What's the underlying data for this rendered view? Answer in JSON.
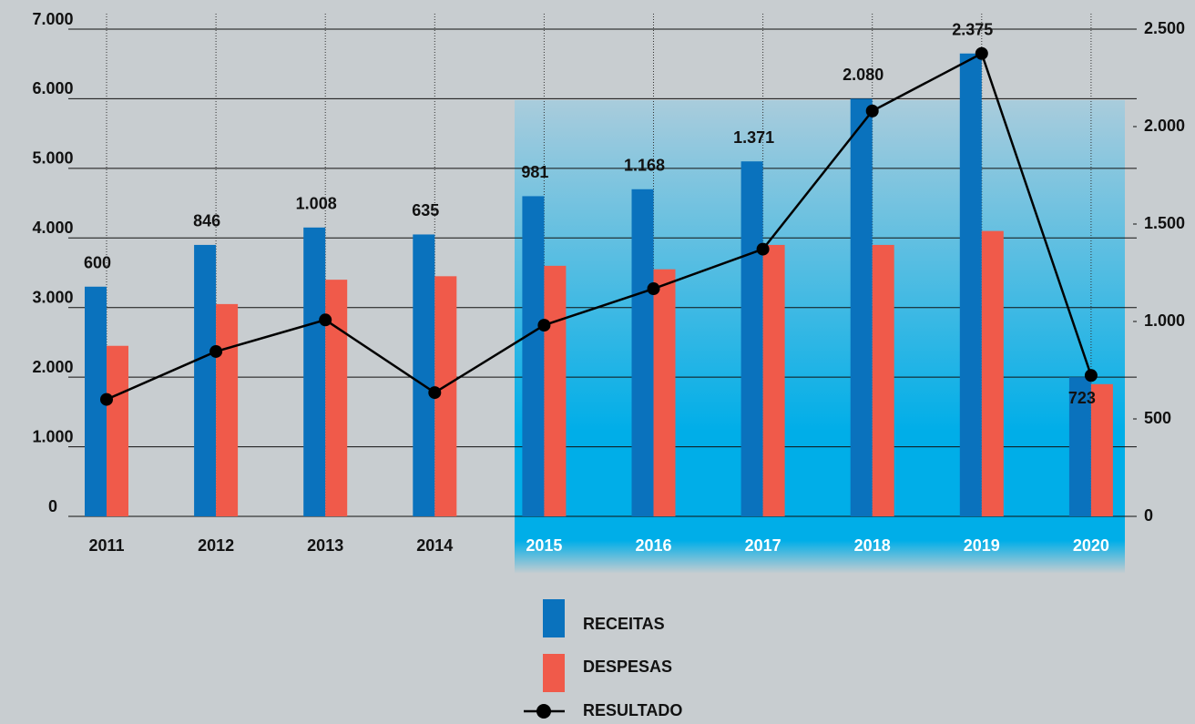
{
  "chart_data": {
    "type": "bar",
    "categories": [
      "2011",
      "2012",
      "2013",
      "2014",
      "2015",
      "2016",
      "2017",
      "2018",
      "2019",
      "2020"
    ],
    "series": [
      {
        "name": "RECEITAS",
        "color": "#0a72bd",
        "values": [
          3300,
          3900,
          4150,
          4050,
          4600,
          4700,
          5100,
          6000,
          6650,
          2000
        ]
      },
      {
        "name": "DESPESAS",
        "color": "#f05a4a",
        "values": [
          2450,
          3050,
          3400,
          3450,
          3600,
          3550,
          3900,
          3900,
          4100,
          1900
        ]
      },
      {
        "name": "RESULTADO",
        "color": "#000000",
        "axis": "y2",
        "type": "line",
        "values": [
          600,
          846,
          1008,
          635,
          981,
          1168,
          1371,
          2080,
          2375,
          723
        ],
        "value_labels": [
          "600",
          "846",
          "1.008",
          "635",
          "981",
          "1.168",
          "1.371",
          "2.080",
          "2.375",
          "723"
        ]
      }
    ],
    "ylim": [
      0,
      7000
    ],
    "yticks": [
      0,
      {
        "value": 1000,
        "label": "1.000"
      },
      {
        "value": 2000,
        "label": "2.000"
      },
      {
        "value": 3000,
        "label": "3.000"
      },
      {
        "value": 4000,
        "label": "4.000"
      },
      {
        "value": 5000,
        "label": "5.000"
      },
      {
        "value": 6000,
        "label": "6.000"
      },
      {
        "value": 7000,
        "label": "7.000"
      }
    ],
    "y2lim": [
      0,
      2500
    ],
    "y2ticks": [
      0,
      500,
      {
        "value": 1000,
        "label": "1.000"
      },
      {
        "value": 1500,
        "label": "1.500"
      },
      {
        "value": 2000,
        "label": "2.000"
      },
      {
        "value": 2500,
        "label": "2.500"
      }
    ],
    "grid": true
  }
}
